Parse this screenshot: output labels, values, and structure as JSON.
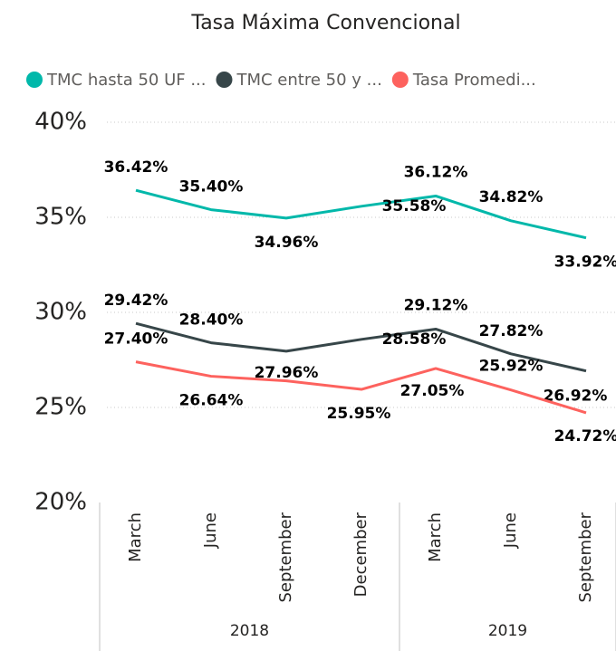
{
  "chart_data": {
    "type": "line",
    "title": "Tasa Máxima Convencional",
    "categories": [
      "March",
      "June",
      "September",
      "December",
      "March",
      "June",
      "September"
    ],
    "groups": [
      {
        "label": "2018",
        "size": 4
      },
      {
        "label": "2019",
        "size": 3
      }
    ],
    "series": [
      {
        "name": "TMC hasta 50 UF ...",
        "color": "#01B8AA",
        "values": [
          36.42,
          35.4,
          34.96,
          35.58,
          36.12,
          34.82,
          33.92
        ],
        "value_labels": [
          "36.42%",
          "35.40%",
          "34.96%",
          "35.58%",
          "36.12%",
          "34.82%",
          "33.92%"
        ]
      },
      {
        "name": "TMC entre 50 y ...",
        "color": "#374649",
        "values": [
          29.42,
          28.4,
          27.96,
          28.58,
          29.12,
          27.82,
          26.92
        ],
        "value_labels": [
          "29.42%",
          "28.40%",
          "27.96%",
          "28.58%",
          "29.12%",
          "27.82%",
          "26.92%"
        ]
      },
      {
        "name": "Tasa Promedi...",
        "color": "#FD625E",
        "values": [
          27.4,
          26.64,
          26.4,
          25.95,
          27.05,
          25.92,
          24.72
        ],
        "value_labels": [
          "27.40%",
          "26.64%",
          null,
          "25.95%",
          "27.05%",
          "25.92%",
          "24.72%"
        ]
      }
    ],
    "ylim": [
      20,
      40
    ],
    "yticks": [
      {
        "value": 20,
        "label": "20%"
      },
      {
        "value": 25,
        "label": "25%"
      },
      {
        "value": 30,
        "label": "30%"
      },
      {
        "value": 35,
        "label": "35%"
      },
      {
        "value": 40,
        "label": "40%"
      }
    ],
    "grid": true,
    "legend": "top"
  }
}
